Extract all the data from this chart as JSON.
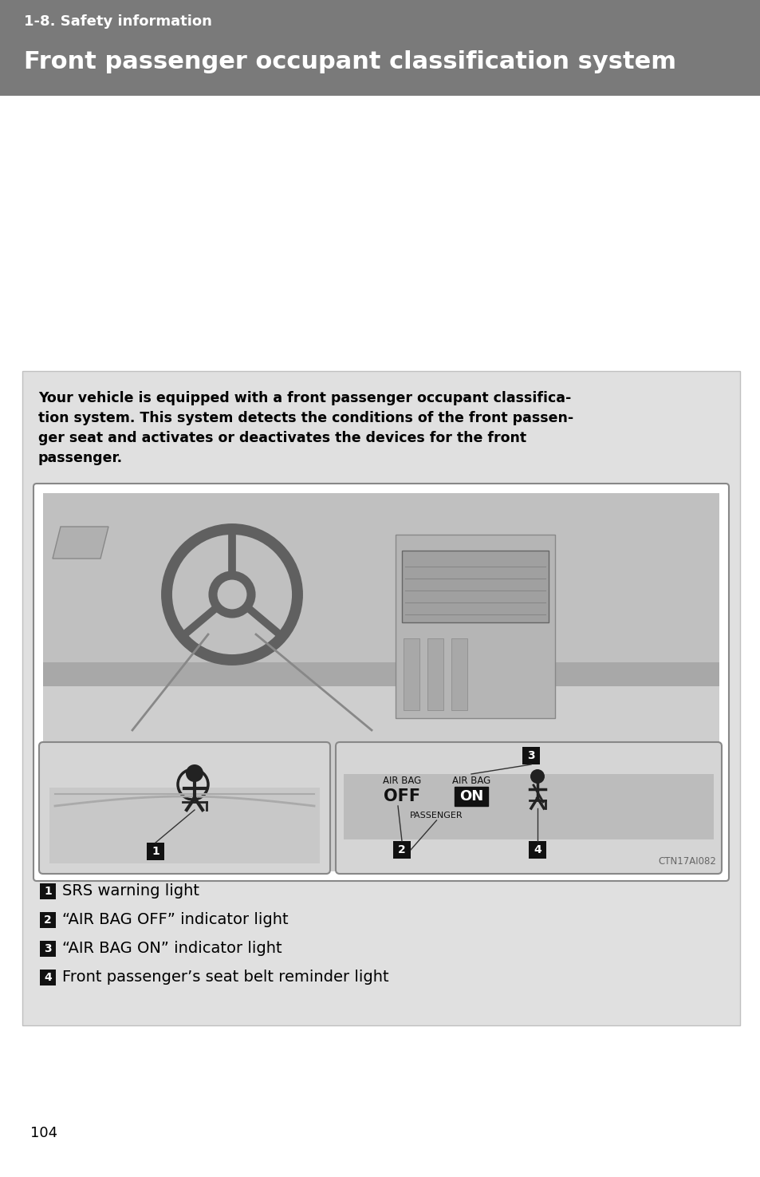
{
  "page_bg": "#ffffff",
  "header_bg": "#7a7a7a",
  "header_subtitle": "1-8. Safety information",
  "header_title": "Front passenger occupant classification system",
  "header_subtitle_color": "#ffffff",
  "header_title_color": "#ffffff",
  "content_bg": "#e0e0e0",
  "intro_lines": [
    "Your vehicle is equipped with a front passenger occupant classifica-",
    "tion system. This system detects the conditions of the front passen-",
    "ger seat and activates or deactivates the devices for the front",
    "passenger."
  ],
  "label1": "SRS warning light",
  "label2": "“AIR BAG OFF” indicator light",
  "label3": "“AIR BAG ON” indicator light",
  "label4": "Front passenger’s seat belt reminder light",
  "footer_page": "104",
  "image_ref": "CTN17AI082"
}
